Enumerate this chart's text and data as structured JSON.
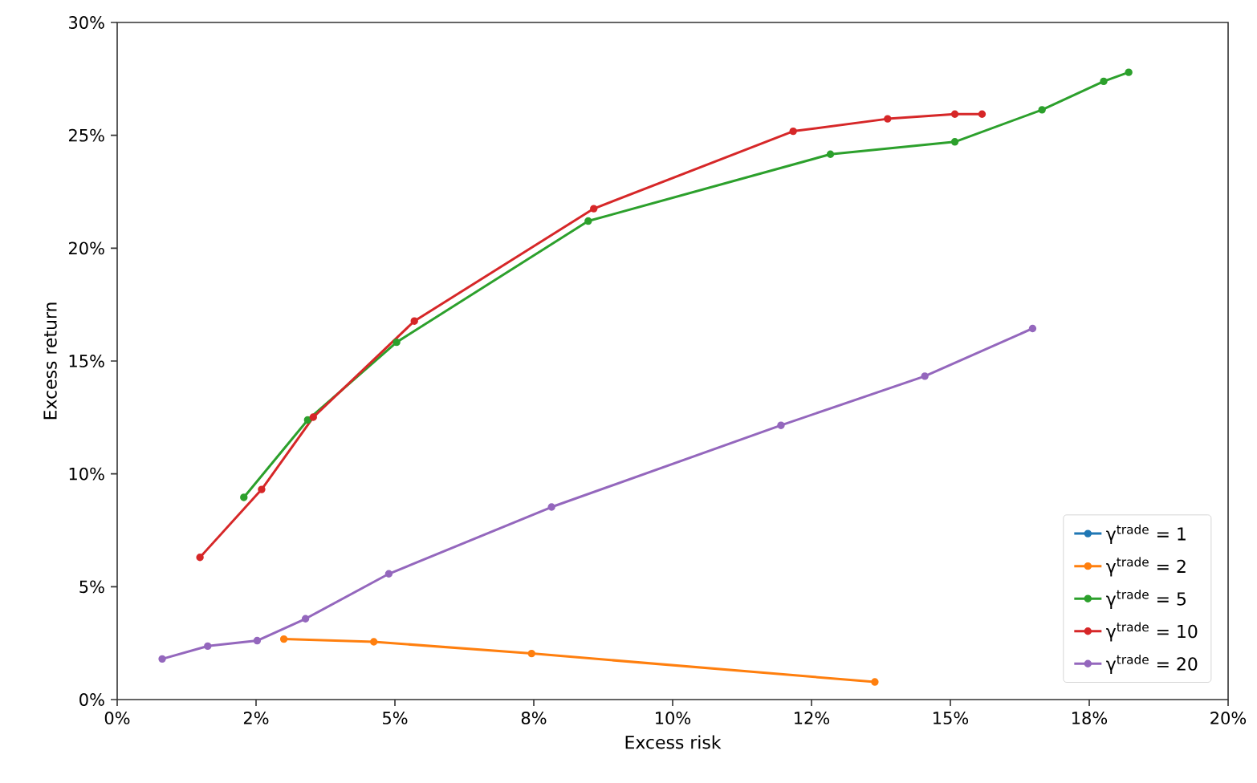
{
  "chart_data": {
    "type": "line",
    "xlabel": "Excess risk",
    "ylabel": "Excess return",
    "marker": "circle",
    "legend": "bottom right",
    "grid": false,
    "xlim": [
      0,
      20
    ],
    "ylim": [
      0,
      30
    ],
    "xticks": [
      {
        "value": 0,
        "label": "0%"
      },
      {
        "value": 2.5,
        "label": "2%"
      },
      {
        "value": 5,
        "label": "5%"
      },
      {
        "value": 7.5,
        "label": "8%"
      },
      {
        "value": 10,
        "label": "10%"
      },
      {
        "value": 12.5,
        "label": "12%"
      },
      {
        "value": 15,
        "label": "15%"
      },
      {
        "value": 17.5,
        "label": "18%"
      },
      {
        "value": 20,
        "label": "20%"
      }
    ],
    "yticks": [
      {
        "value": 0,
        "label": "0%"
      },
      {
        "value": 5,
        "label": "5%"
      },
      {
        "value": 10,
        "label": "10%"
      },
      {
        "value": 15,
        "label": "15%"
      },
      {
        "value": 20,
        "label": "20%"
      },
      {
        "value": 25,
        "label": "25%"
      },
      {
        "value": 30,
        "label": "30%"
      }
    ],
    "series": [
      {
        "name": "γ$^{trade}$ = 1",
        "color": "#1f77b4"
      },
      {
        "name": "γ$^{trade}$ = 2",
        "color": "#ff7f0e",
        "x": [
          3.0,
          4.62,
          7.46,
          13.64
        ],
        "values": [
          2.68,
          2.56,
          2.04,
          0.78
        ]
      },
      {
        "name": "γ$^{trade}$ = 5",
        "color": "#2ca02c",
        "x": [
          2.28,
          3.43,
          5.03,
          8.48,
          12.84,
          15.08,
          16.65,
          17.76,
          18.21
        ],
        "values": [
          8.96,
          12.39,
          15.83,
          21.2,
          24.16,
          24.71,
          26.13,
          27.39,
          27.79
        ]
      },
      {
        "name": "γ$^{trade}$ = 10",
        "color": "#d62728",
        "x": [
          1.49,
          2.6,
          3.53,
          5.35,
          8.58,
          12.17,
          13.87,
          15.08,
          15.57
        ],
        "values": [
          6.3,
          9.31,
          12.51,
          16.77,
          21.75,
          25.18,
          25.73,
          25.94,
          25.94
        ]
      },
      {
        "name": "γ$^{trade}$ = 20",
        "color": "#9467bd",
        "x": [
          0.81,
          1.63,
          2.52,
          3.39,
          4.89,
          7.82,
          11.95,
          14.54,
          16.48
        ],
        "values": [
          1.8,
          2.37,
          2.61,
          3.58,
          5.57,
          8.53,
          12.15,
          14.33,
          16.44
        ]
      }
    ]
  }
}
